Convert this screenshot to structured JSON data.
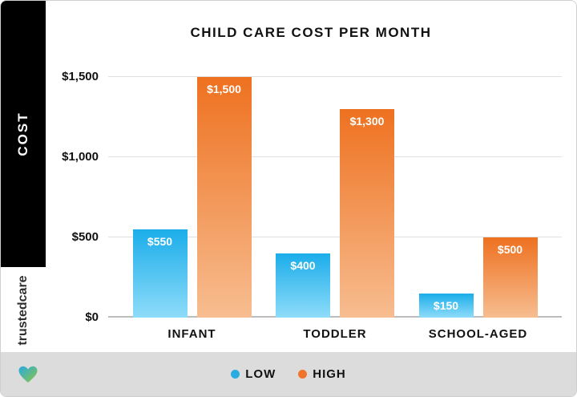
{
  "sidebar": {
    "axis_label": "COST",
    "brand": "trustedcare"
  },
  "icons": {
    "brand_heart": "heart-icon"
  },
  "colors": {
    "heart_blue": "#29abe2",
    "heart_green": "#8cc63f",
    "footer_gray": "#dcdcdc"
  },
  "chart_data": {
    "type": "bar",
    "title": "CHILD CARE COST PER MONTH",
    "categories": [
      "INFANT",
      "TODDLER",
      "SCHOOL-AGED"
    ],
    "series": [
      {
        "name": "LOW",
        "dot_color": "#29abe2",
        "color_top": "#1badea",
        "color_bottom": "#8edcf9",
        "values": [
          550,
          400,
          150
        ],
        "labels": [
          "$550",
          "$400",
          "$150"
        ]
      },
      {
        "name": "HIGH",
        "dot_color": "#f1742c",
        "color_top": "#ee7120",
        "color_bottom": "#f7bd90",
        "values": [
          1500,
          1300,
          500
        ],
        "labels": [
          "$1,500",
          "$1,300",
          "$500"
        ]
      }
    ],
    "ylabel": "COST",
    "xlabel": "",
    "ylim": [
      0,
      1500
    ],
    "yticks": [
      {
        "value": 0,
        "label": "$0"
      },
      {
        "value": 500,
        "label": "$500"
      },
      {
        "value": 1000,
        "label": "$1,000"
      },
      {
        "value": 1500,
        "label": "$1,500"
      }
    ],
    "grid": true,
    "legend_position": "bottom"
  }
}
